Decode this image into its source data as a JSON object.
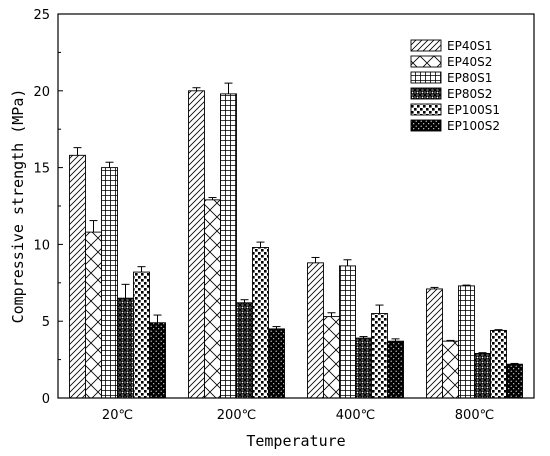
{
  "chart_data": {
    "type": "bar",
    "title": "",
    "xlabel": "Temperature",
    "ylabel": "Compressive strength (MPa)",
    "ylim": [
      0,
      25
    ],
    "yticks": [
      0,
      5,
      10,
      15,
      20,
      25
    ],
    "categories": [
      "20℃",
      "200℃",
      "400℃",
      "800℃"
    ],
    "legend_position": "top-right",
    "grid": false,
    "series": [
      {
        "name": "EP40S1",
        "pattern": "diagonal",
        "values": [
          15.8,
          20.0,
          8.8,
          7.1
        ],
        "errors": [
          0.5,
          0.2,
          0.35,
          0.1
        ]
      },
      {
        "name": "EP40S2",
        "pattern": "crosshatch-diag",
        "values": [
          10.8,
          12.9,
          5.3,
          3.7
        ],
        "errors": [
          0.75,
          0.15,
          0.25,
          0.05
        ]
      },
      {
        "name": "EP80S1",
        "pattern": "grid",
        "values": [
          15.0,
          19.8,
          8.6,
          7.3
        ],
        "errors": [
          0.35,
          0.7,
          0.4,
          0.05
        ]
      },
      {
        "name": "EP80S2",
        "pattern": "dense-cross",
        "values": [
          6.5,
          6.2,
          3.9,
          2.9
        ],
        "errors": [
          0.9,
          0.2,
          0.1,
          0.05
        ]
      },
      {
        "name": "EP100S1",
        "pattern": "dots",
        "values": [
          8.2,
          9.8,
          5.5,
          4.4
        ],
        "errors": [
          0.35,
          0.35,
          0.55,
          0.05
        ]
      },
      {
        "name": "EP100S2",
        "pattern": "dark-dots",
        "values": [
          4.9,
          4.5,
          3.7,
          2.2
        ],
        "errors": [
          0.5,
          0.15,
          0.15,
          0.05
        ]
      }
    ]
  }
}
